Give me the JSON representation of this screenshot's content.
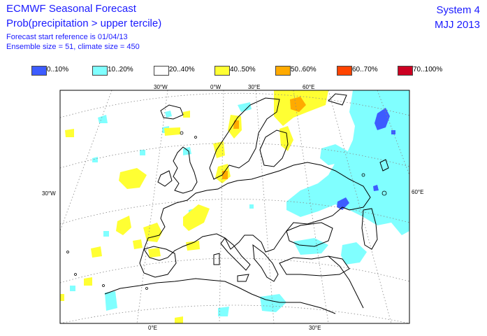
{
  "header": {
    "title_line1": "ECMWF Seasonal Forecast",
    "title_line2": "Prob(precipitation > upper tercile)",
    "start_ref": "Forecast start reference is 01/04/13",
    "ensemble": "Ensemble size = 51, climate size = 450",
    "system": "System 4",
    "period": "MJJ 2013"
  },
  "legend": [
    {
      "label": "0..10%",
      "color": "#3d5cff"
    },
    {
      "label": "10..20%",
      "color": "#80ffff"
    },
    {
      "label": "20..40%",
      "color": "#ffffff"
    },
    {
      "label": "40..50%",
      "color": "#ffff33"
    },
    {
      "label": "50..60%",
      "color": "#ffaa00"
    },
    {
      "label": "60..70%",
      "color": "#ff4400"
    },
    {
      "label": "70..100%",
      "color": "#cc0022"
    }
  ],
  "ticks": {
    "top": [
      "30°W",
      "0°W",
      "30°E",
      "60°E"
    ],
    "left": "30°W",
    "right": "60°E",
    "bottom": [
      "0°E",
      "30°E"
    ]
  },
  "colors": {
    "text": "#1a1aff",
    "coast": "#000000",
    "grid": "#888888",
    "low": "#80ffff",
    "verylow": "#3d5cff",
    "high": "#ffff33",
    "higher": "#ffaa00"
  }
}
